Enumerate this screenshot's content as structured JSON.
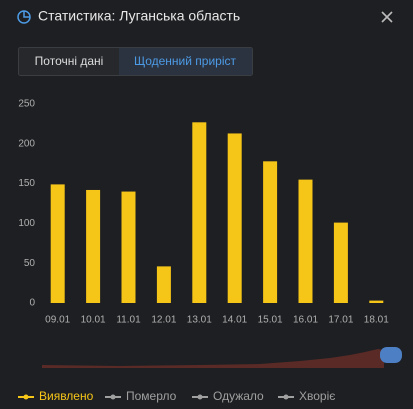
{
  "header": {
    "title": "Статистика: Луганська область"
  },
  "tabs": [
    "Поточні дані",
    "Щоденний приріст"
  ],
  "chart_data": {
    "type": "bar",
    "categories": [
      "09.01",
      "10.01",
      "11.01",
      "12.01",
      "13.01",
      "14.01",
      "15.01",
      "16.01",
      "17.01",
      "18.01"
    ],
    "series": [
      {
        "name": "Виявлено",
        "color": "#f5c518",
        "values": [
          149,
          142,
          140,
          46,
          227,
          213,
          178,
          155,
          101,
          3
        ]
      },
      {
        "name": "Померло",
        "color": "#a0a0a0",
        "values": [
          null,
          null,
          null,
          null,
          null,
          null,
          null,
          null,
          null,
          null
        ]
      },
      {
        "name": "Одужало",
        "color": "#a0a0a0",
        "values": [
          null,
          null,
          null,
          null,
          null,
          null,
          null,
          null,
          null,
          null
        ]
      },
      {
        "name": "Хворіє",
        "color": "#a0a0a0",
        "values": [
          null,
          null,
          null,
          null,
          null,
          null,
          null,
          null,
          null,
          null
        ]
      }
    ],
    "ylim": [
      0,
      250
    ],
    "yticks": [
      0,
      50,
      100,
      150,
      200,
      250
    ],
    "grid": false
  }
}
